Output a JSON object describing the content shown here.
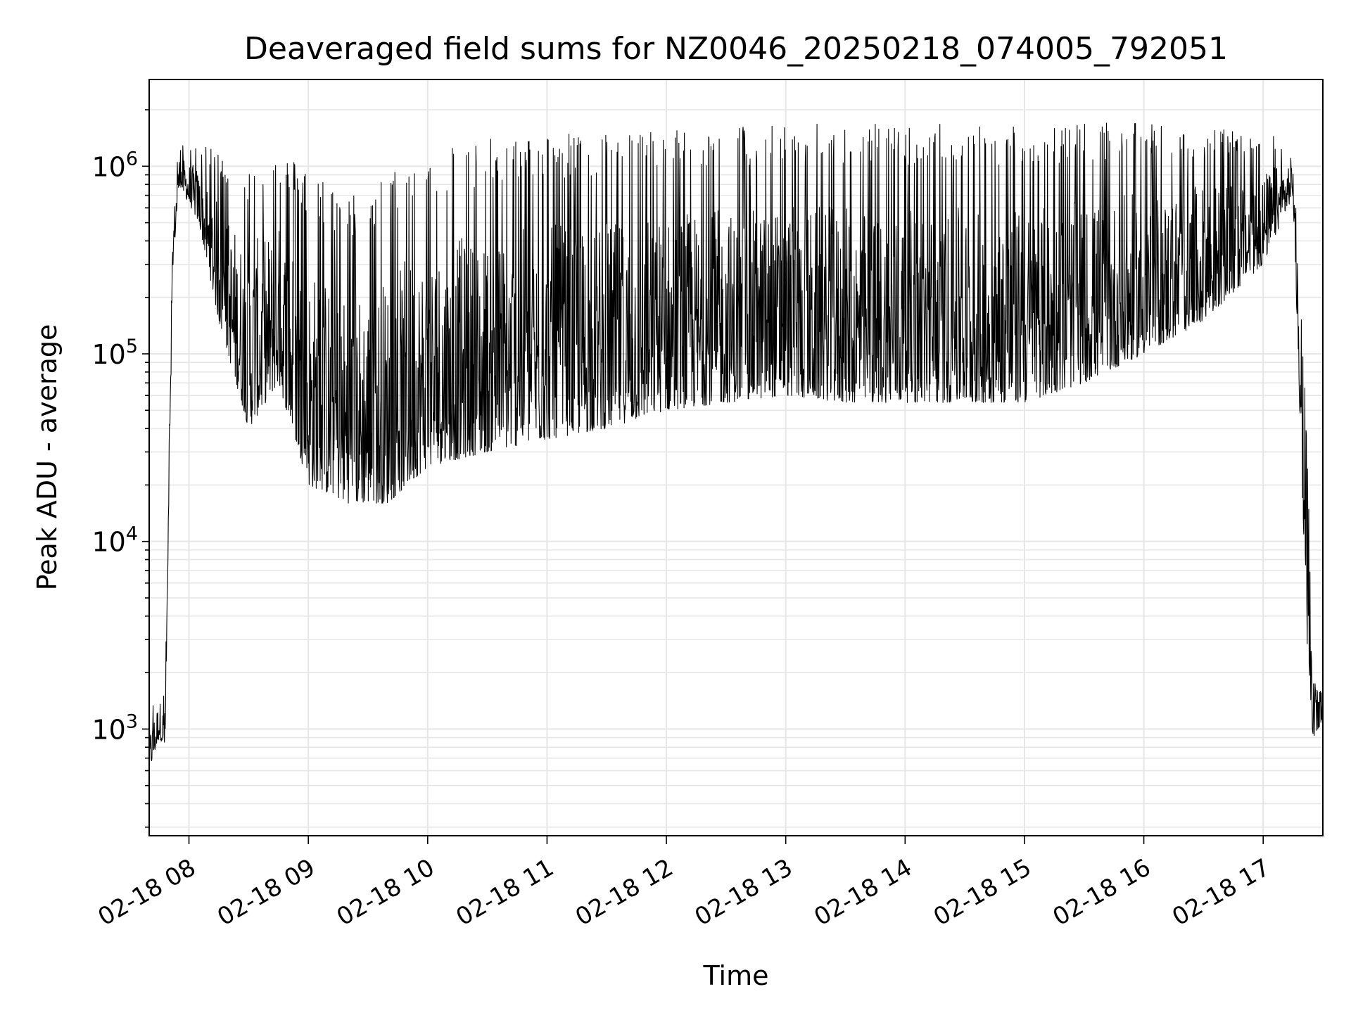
{
  "chart_data": {
    "type": "line",
    "title": "Deaveraged field sums for NZ0046_20250218_074005_792051",
    "xlabel": "Time",
    "ylabel": "Peak ADU - average",
    "yscale": "log",
    "grid": true,
    "line_color": "#000000",
    "grid_color": "#e6e6e6",
    "xlim": [
      "2025-02-18T07:40",
      "2025-02-18T17:30"
    ],
    "ylim": [
      270,
      2900000
    ],
    "x_ticks": [
      {
        "value": "2025-02-18T08:00",
        "label": "02-18 08"
      },
      {
        "value": "2025-02-18T09:00",
        "label": "02-18 09"
      },
      {
        "value": "2025-02-18T10:00",
        "label": "02-18 10"
      },
      {
        "value": "2025-02-18T11:00",
        "label": "02-18 11"
      },
      {
        "value": "2025-02-18T12:00",
        "label": "02-18 12"
      },
      {
        "value": "2025-02-18T13:00",
        "label": "02-18 13"
      },
      {
        "value": "2025-02-18T14:00",
        "label": "02-18 14"
      },
      {
        "value": "2025-02-18T15:00",
        "label": "02-18 15"
      },
      {
        "value": "2025-02-18T16:00",
        "label": "02-18 16"
      },
      {
        "value": "2025-02-18T17:00",
        "label": "02-18 17"
      }
    ],
    "y_ticks": [
      {
        "value": 1000,
        "base": "10",
        "exp": "3"
      },
      {
        "value": 10000,
        "base": "10",
        "exp": "4"
      },
      {
        "value": 100000,
        "base": "10",
        "exp": "5"
      },
      {
        "value": 1000000,
        "base": "10",
        "exp": "6"
      }
    ],
    "series": [
      {
        "description_values": "approximate envelope of the noisy trace: [time, lower, upper]",
        "envelope": [
          [
            "2025-02-18T07:40",
            600,
            1200
          ],
          [
            "2025-02-18T07:45",
            900,
            1800
          ],
          [
            "2025-02-18T07:48",
            800,
            1500
          ],
          [
            "2025-02-18T07:52",
            300000,
            700000
          ],
          [
            "2025-02-18T07:55",
            800000,
            1300000
          ],
          [
            "2025-02-18T08:05",
            500000,
            1300000
          ],
          [
            "2025-02-18T08:15",
            150000,
            1200000
          ],
          [
            "2025-02-18T08:30",
            40000,
            1000000
          ],
          [
            "2025-02-18T08:45",
            70000,
            1200000
          ],
          [
            "2025-02-18T09:00",
            20000,
            1000000
          ],
          [
            "2025-02-18T09:20",
            16000,
            700000
          ],
          [
            "2025-02-18T09:40",
            16000,
            900000
          ],
          [
            "2025-02-18T10:00",
            25000,
            1300000
          ],
          [
            "2025-02-18T10:30",
            30000,
            1400000
          ],
          [
            "2025-02-18T11:00",
            35000,
            1500000
          ],
          [
            "2025-02-18T11:30",
            40000,
            1550000
          ],
          [
            "2025-02-18T12:00",
            50000,
            1600000
          ],
          [
            "2025-02-18T12:30",
            55000,
            1650000
          ],
          [
            "2025-02-18T13:00",
            60000,
            1700000
          ],
          [
            "2025-02-18T13:30",
            55000,
            1700000
          ],
          [
            "2025-02-18T14:00",
            55000,
            1700000
          ],
          [
            "2025-02-18T14:30",
            55000,
            1700000
          ],
          [
            "2025-02-18T15:00",
            55000,
            1700000
          ],
          [
            "2025-02-18T15:30",
            70000,
            1700000
          ],
          [
            "2025-02-18T16:00",
            100000,
            1700000
          ],
          [
            "2025-02-18T16:30",
            150000,
            1600000
          ],
          [
            "2025-02-18T17:00",
            300000,
            1500000
          ],
          [
            "2025-02-18T17:15",
            700000,
            1400000
          ],
          [
            "2025-02-18T17:22",
            3000,
            40000
          ],
          [
            "2025-02-18T17:25",
            900,
            1800
          ],
          [
            "2025-02-18T17:30",
            1100,
            1600
          ]
        ]
      }
    ]
  }
}
